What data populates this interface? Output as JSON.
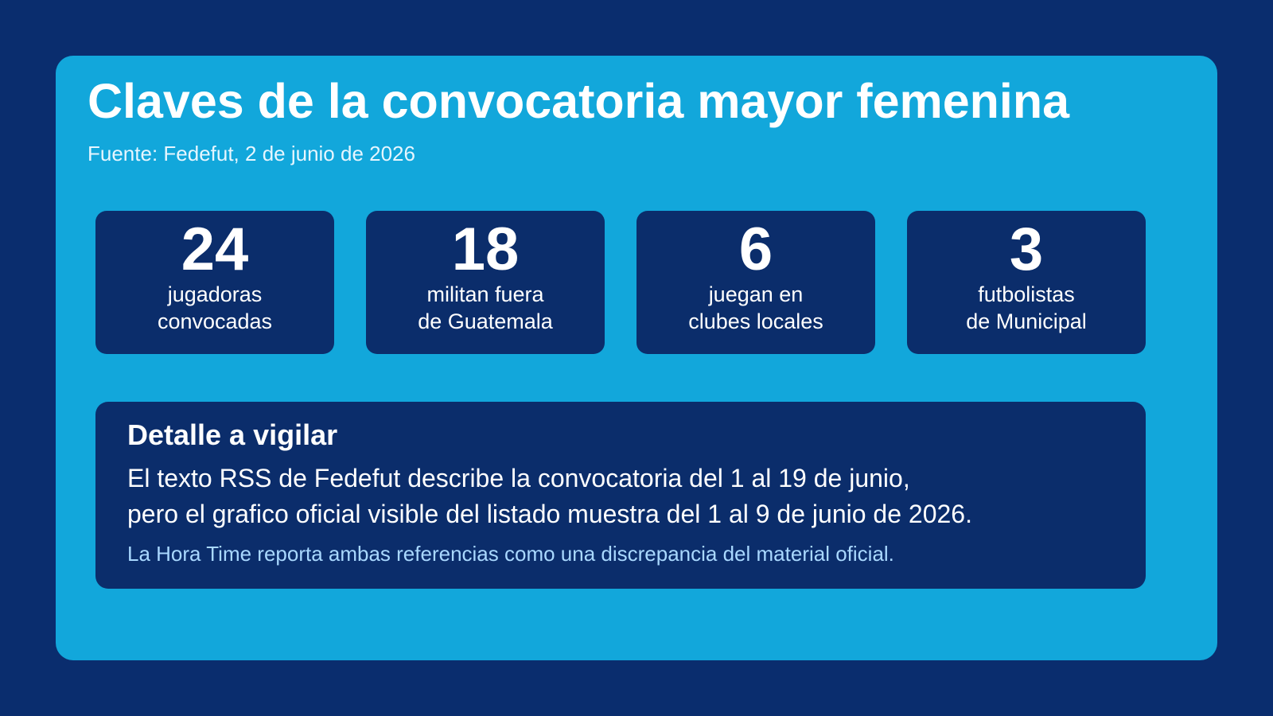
{
  "header": {
    "title": "Claves de la convocatoria mayor femenina",
    "source": "Fuente: Fedefut, 2 de junio de 2026"
  },
  "stats": [
    {
      "value": 24,
      "label": [
        "jugadoras",
        "convocadas"
      ]
    },
    {
      "value": 18,
      "label": [
        "militan fuera",
        "de Guatemala"
      ]
    },
    {
      "value": 6,
      "label": [
        "juegan en",
        "clubes locales"
      ]
    },
    {
      "value": 3,
      "label": [
        "futbolistas",
        "de Municipal"
      ]
    }
  ],
  "detail": {
    "title": "Detalle a vigilar",
    "body": [
      "El texto RSS de Fedefut describe la convocatoria del 1 al 19 de junio,",
      "pero el grafico oficial visible del listado muestra del 1 al 9 de junio de 2026."
    ],
    "note": "La Hora Time reporta ambas referencias como una discrepancia del material oficial."
  }
}
